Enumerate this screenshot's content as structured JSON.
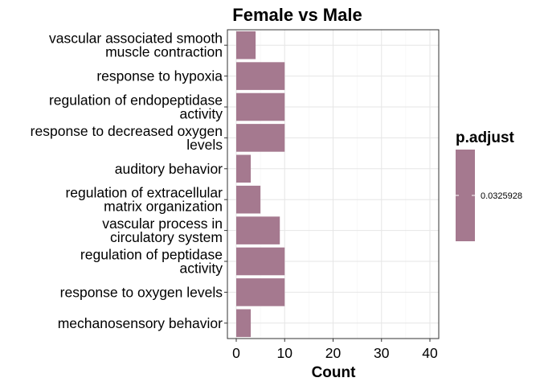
{
  "chart_data": {
    "type": "bar",
    "orientation": "horizontal",
    "title": "Female vs Male",
    "xlabel": "Count",
    "ylabel": "",
    "xlim": [
      0,
      40
    ],
    "xticks": [
      0,
      10,
      20,
      30,
      40
    ],
    "grid": true,
    "categories": [
      [
        "vascular associated smooth",
        "muscle contraction"
      ],
      [
        "response to hypoxia"
      ],
      [
        "regulation of endopeptidase",
        "activity"
      ],
      [
        "response to decreased oxygen",
        "levels"
      ],
      [
        "auditory behavior"
      ],
      [
        "regulation of extracellular",
        "matrix organization"
      ],
      [
        "vascular process in",
        "circulatory system"
      ],
      [
        "regulation of peptidase",
        "activity"
      ],
      [
        "response to oxygen levels"
      ],
      [
        "mechanosensory behavior"
      ]
    ],
    "values": [
      4,
      10,
      10,
      10,
      3,
      5,
      9,
      10,
      10,
      3
    ],
    "bar_color": "#A5798F",
    "legend": {
      "title": "p.adjust",
      "label": "0.0325928",
      "color": "#A5798F",
      "position": "right"
    }
  }
}
